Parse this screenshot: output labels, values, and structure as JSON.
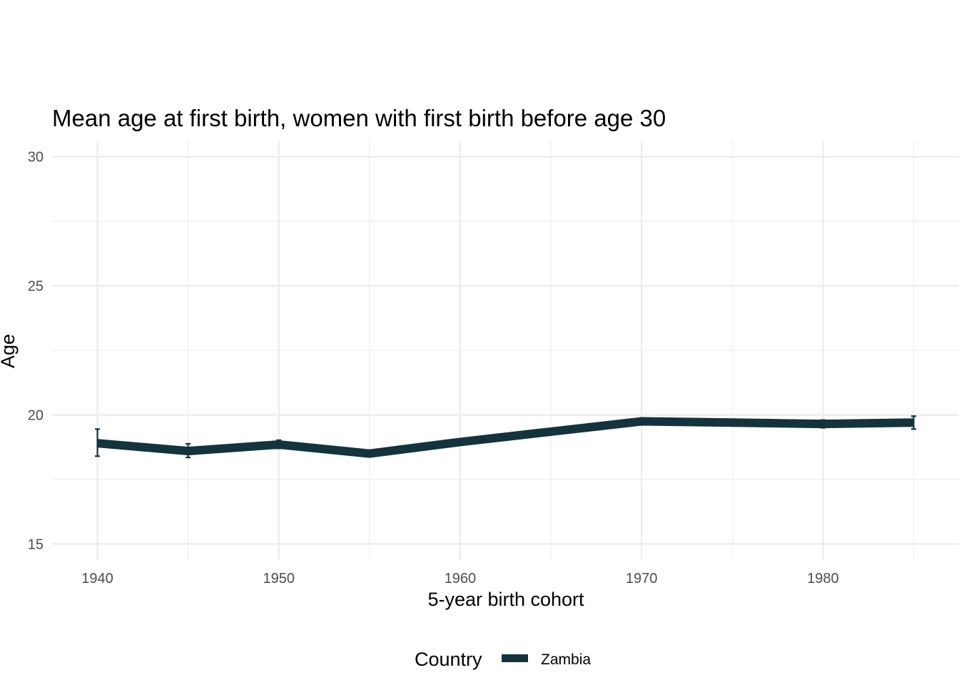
{
  "chart_data": {
    "type": "line",
    "title": "Mean age at first birth, women with first birth before age 30",
    "xlabel": "5-year birth cohort",
    "ylabel": "Age",
    "xlim": [
      1937.5,
      1987.5
    ],
    "ylim": [
      14.4,
      30.6
    ],
    "x_ticks": [
      "1940",
      "1950",
      "1960",
      "1970",
      "1980"
    ],
    "y_ticks": [
      "15",
      "20",
      "25",
      "30"
    ],
    "grid": true,
    "legend": {
      "title": "Country",
      "position": "bottom"
    },
    "series": [
      {
        "name": "Zambia",
        "color": "#14333d",
        "x": [
          1940,
          1945,
          1950,
          1955,
          1960,
          1965,
          1970,
          1975,
          1980,
          1985
        ],
        "values": [
          18.9,
          18.6,
          18.85,
          18.5,
          18.95,
          19.35,
          19.75,
          19.7,
          19.65,
          19.7
        ],
        "error_low": [
          18.4,
          18.35,
          18.7,
          18.45,
          18.9,
          19.28,
          19.7,
          19.62,
          19.5,
          19.45
        ],
        "error_high": [
          19.45,
          18.88,
          19.02,
          18.58,
          19.02,
          19.42,
          19.82,
          19.78,
          19.8,
          19.95
        ]
      }
    ]
  }
}
